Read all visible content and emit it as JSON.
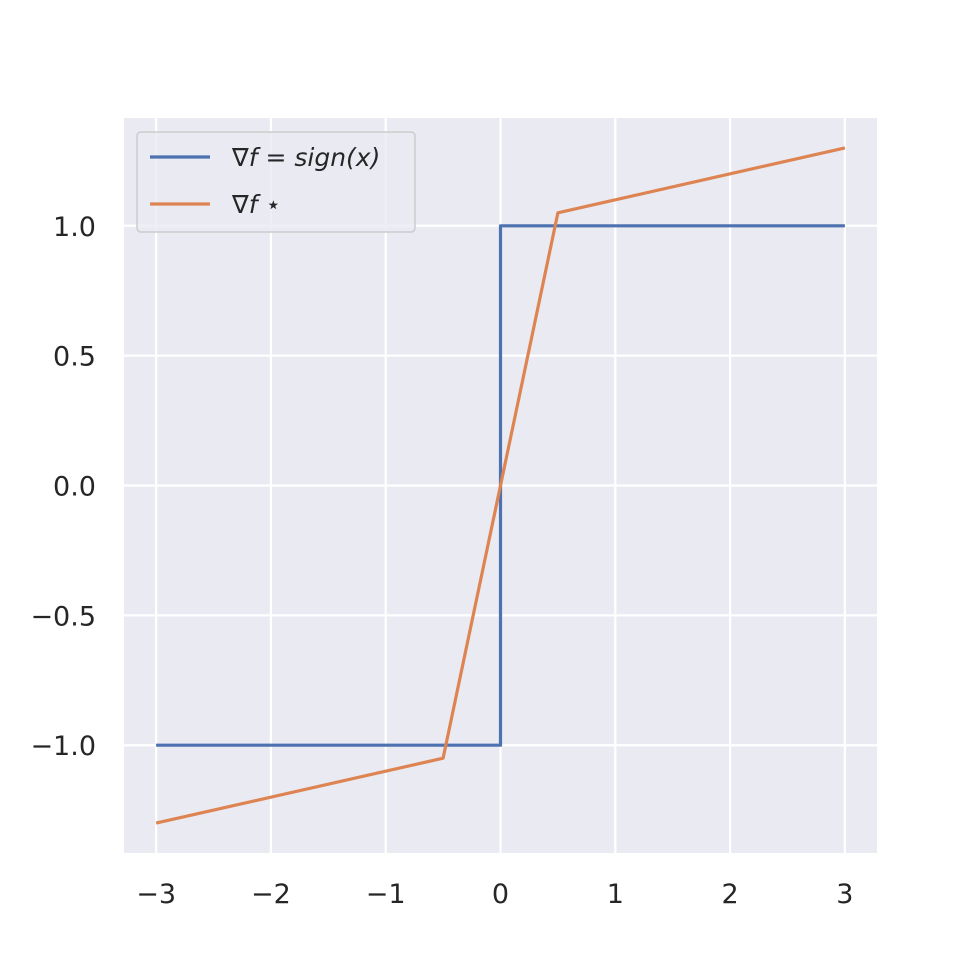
{
  "chart_data": {
    "type": "line",
    "title": "",
    "xlabel": "",
    "ylabel": "",
    "xlim": [
      -3.28,
      3.28
    ],
    "ylim": [
      -1.415,
      1.415
    ],
    "x_ticks": [
      -3,
      -2,
      -1,
      0,
      1,
      2,
      3
    ],
    "x_tick_labels": [
      "−3",
      "−2",
      "−1",
      "0",
      "1",
      "2",
      "3"
    ],
    "y_ticks": [
      1.0,
      0.5,
      0.0,
      -0.5,
      -1.0
    ],
    "y_tick_labels": [
      "1.0",
      "0.5",
      "0.0",
      "−0.5",
      "−1.0"
    ],
    "grid": true,
    "legend_position": "top-left",
    "colors": {
      "background": "#eaeaf2",
      "grid": "#ffffff",
      "text": "#262626"
    },
    "series": [
      {
        "name": "∇f = sign(x)",
        "color": "#4c72b0",
        "x": [
          -3,
          0,
          0,
          3
        ],
        "y": [
          -1.0,
          -1.0,
          1.0,
          1.0
        ]
      },
      {
        "name": "∇f ⋆",
        "color": "#dd8452",
        "x": [
          -3,
          -0.5,
          0.5,
          3
        ],
        "y": [
          -1.3,
          -1.05,
          1.05,
          1.3
        ]
      }
    ]
  }
}
